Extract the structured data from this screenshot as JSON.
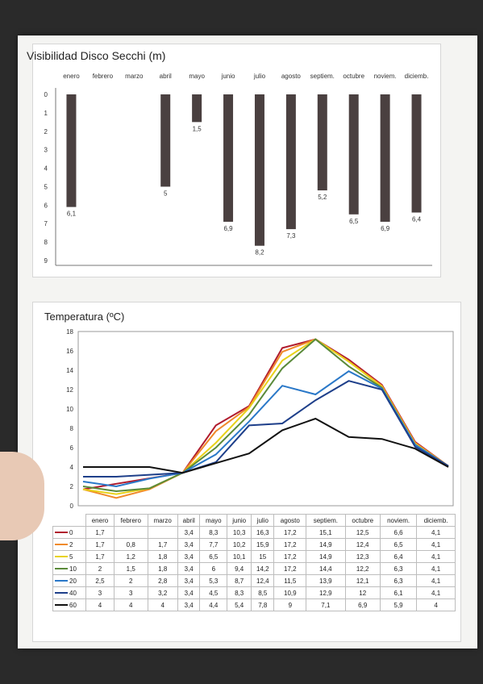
{
  "chart_data": [
    {
      "type": "bar",
      "title": "Visibilidad Disco Secchi (m)",
      "categories": [
        "enero",
        "febrero",
        "marzo",
        "abril",
        "mayo",
        "junio",
        "julio",
        "agosto",
        "septiem.",
        "octubre",
        "noviem.",
        "diciemb."
      ],
      "values": [
        6.1,
        null,
        null,
        5,
        1.5,
        6.9,
        8.2,
        7.3,
        5.2,
        6.5,
        6.9,
        6.4
      ],
      "data_labels": [
        "6,1",
        "",
        "",
        "5",
        "1,5",
        "6,9",
        "8,2",
        "7,3",
        "5,2",
        "6,5",
        "6,9",
        "6,4"
      ],
      "y_ticks": [
        "0",
        "1",
        "2",
        "3",
        "4",
        "5",
        "6",
        "7",
        "8",
        "9"
      ],
      "ylim": [
        0,
        9
      ],
      "y_inverted": true,
      "bar_color": "#4a4040",
      "grid": false
    },
    {
      "type": "line",
      "title": "Temperatura (ºC)",
      "categories": [
        "enero",
        "febrero",
        "marzo",
        "abril",
        "mayo",
        "junio",
        "julio",
        "agosto",
        "septiem.",
        "octubre",
        "noviem.",
        "diciemb."
      ],
      "y_ticks": [
        "0",
        "2",
        "4",
        "6",
        "8",
        "10",
        "12",
        "14",
        "16",
        "18"
      ],
      "ylim": [
        0,
        18
      ],
      "grid": false,
      "legend_placement": "table-left",
      "series": [
        {
          "name": "0",
          "color": "#b01c2e",
          "values": [
            1.7,
            null,
            null,
            3.4,
            8.3,
            10.3,
            16.3,
            17.2,
            15.1,
            12.5,
            6.6,
            4.1
          ],
          "labels": [
            "1,7",
            "",
            "",
            "3,4",
            "8,3",
            "10,3",
            "16,3",
            "17,2",
            "15,1",
            "12,5",
            "6,6",
            "4,1"
          ]
        },
        {
          "name": "2",
          "color": "#f08a2a",
          "values": [
            1.7,
            0.8,
            1.7,
            3.4,
            7.7,
            10.2,
            15.9,
            17.2,
            14.9,
            12.4,
            6.5,
            4.1
          ],
          "labels": [
            "1,7",
            "0,8",
            "1,7",
            "3,4",
            "7,7",
            "10,2",
            "15,9",
            "17,2",
            "14,9",
            "12,4",
            "6,5",
            "4,1"
          ]
        },
        {
          "name": "5",
          "color": "#e8d21a",
          "values": [
            1.7,
            1.2,
            1.8,
            3.4,
            6.5,
            10.1,
            15,
            17.2,
            14.9,
            12.3,
            6.4,
            4.1
          ],
          "labels": [
            "1,7",
            "1,2",
            "1,8",
            "3,4",
            "6,5",
            "10,1",
            "15",
            "17,2",
            "14,9",
            "12,3",
            "6,4",
            "4,1"
          ]
        },
        {
          "name": "10",
          "color": "#5a8a3a",
          "values": [
            2,
            1.5,
            1.8,
            3.4,
            6,
            9.4,
            14.2,
            17.2,
            14.4,
            12.2,
            6.3,
            4.1
          ],
          "labels": [
            "2",
            "1,5",
            "1,8",
            "3,4",
            "6",
            "9,4",
            "14,2",
            "17,2",
            "14,4",
            "12,2",
            "6,3",
            "4,1"
          ]
        },
        {
          "name": "20",
          "color": "#2a78c8",
          "values": [
            2.5,
            2,
            2.8,
            3.4,
            5.3,
            8.7,
            12.4,
            11.5,
            13.9,
            12.1,
            6.3,
            4.1
          ],
          "labels": [
            "2,5",
            "2",
            "2,8",
            "3,4",
            "5,3",
            "8,7",
            "12,4",
            "11,5",
            "13,9",
            "12,1",
            "6,3",
            "4,1"
          ]
        },
        {
          "name": "40",
          "color": "#1e3f8a",
          "values": [
            3,
            3,
            3.2,
            3.4,
            4.5,
            8.3,
            8.5,
            10.9,
            12.9,
            12,
            6.1,
            4.1
          ],
          "labels": [
            "3",
            "3",
            "3,2",
            "3,4",
            "4,5",
            "8,3",
            "8,5",
            "10,9",
            "12,9",
            "12",
            "6,1",
            "4,1"
          ]
        },
        {
          "name": "60",
          "color": "#111111",
          "values": [
            4,
            4,
            4,
            3.4,
            4.4,
            5.4,
            7.8,
            9,
            7.1,
            6.9,
            5.9,
            4
          ],
          "labels": [
            "4",
            "4",
            "4",
            "3,4",
            "4,4",
            "5,4",
            "7,8",
            "9",
            "7,1",
            "6,9",
            "5,9",
            "4"
          ]
        }
      ]
    }
  ]
}
